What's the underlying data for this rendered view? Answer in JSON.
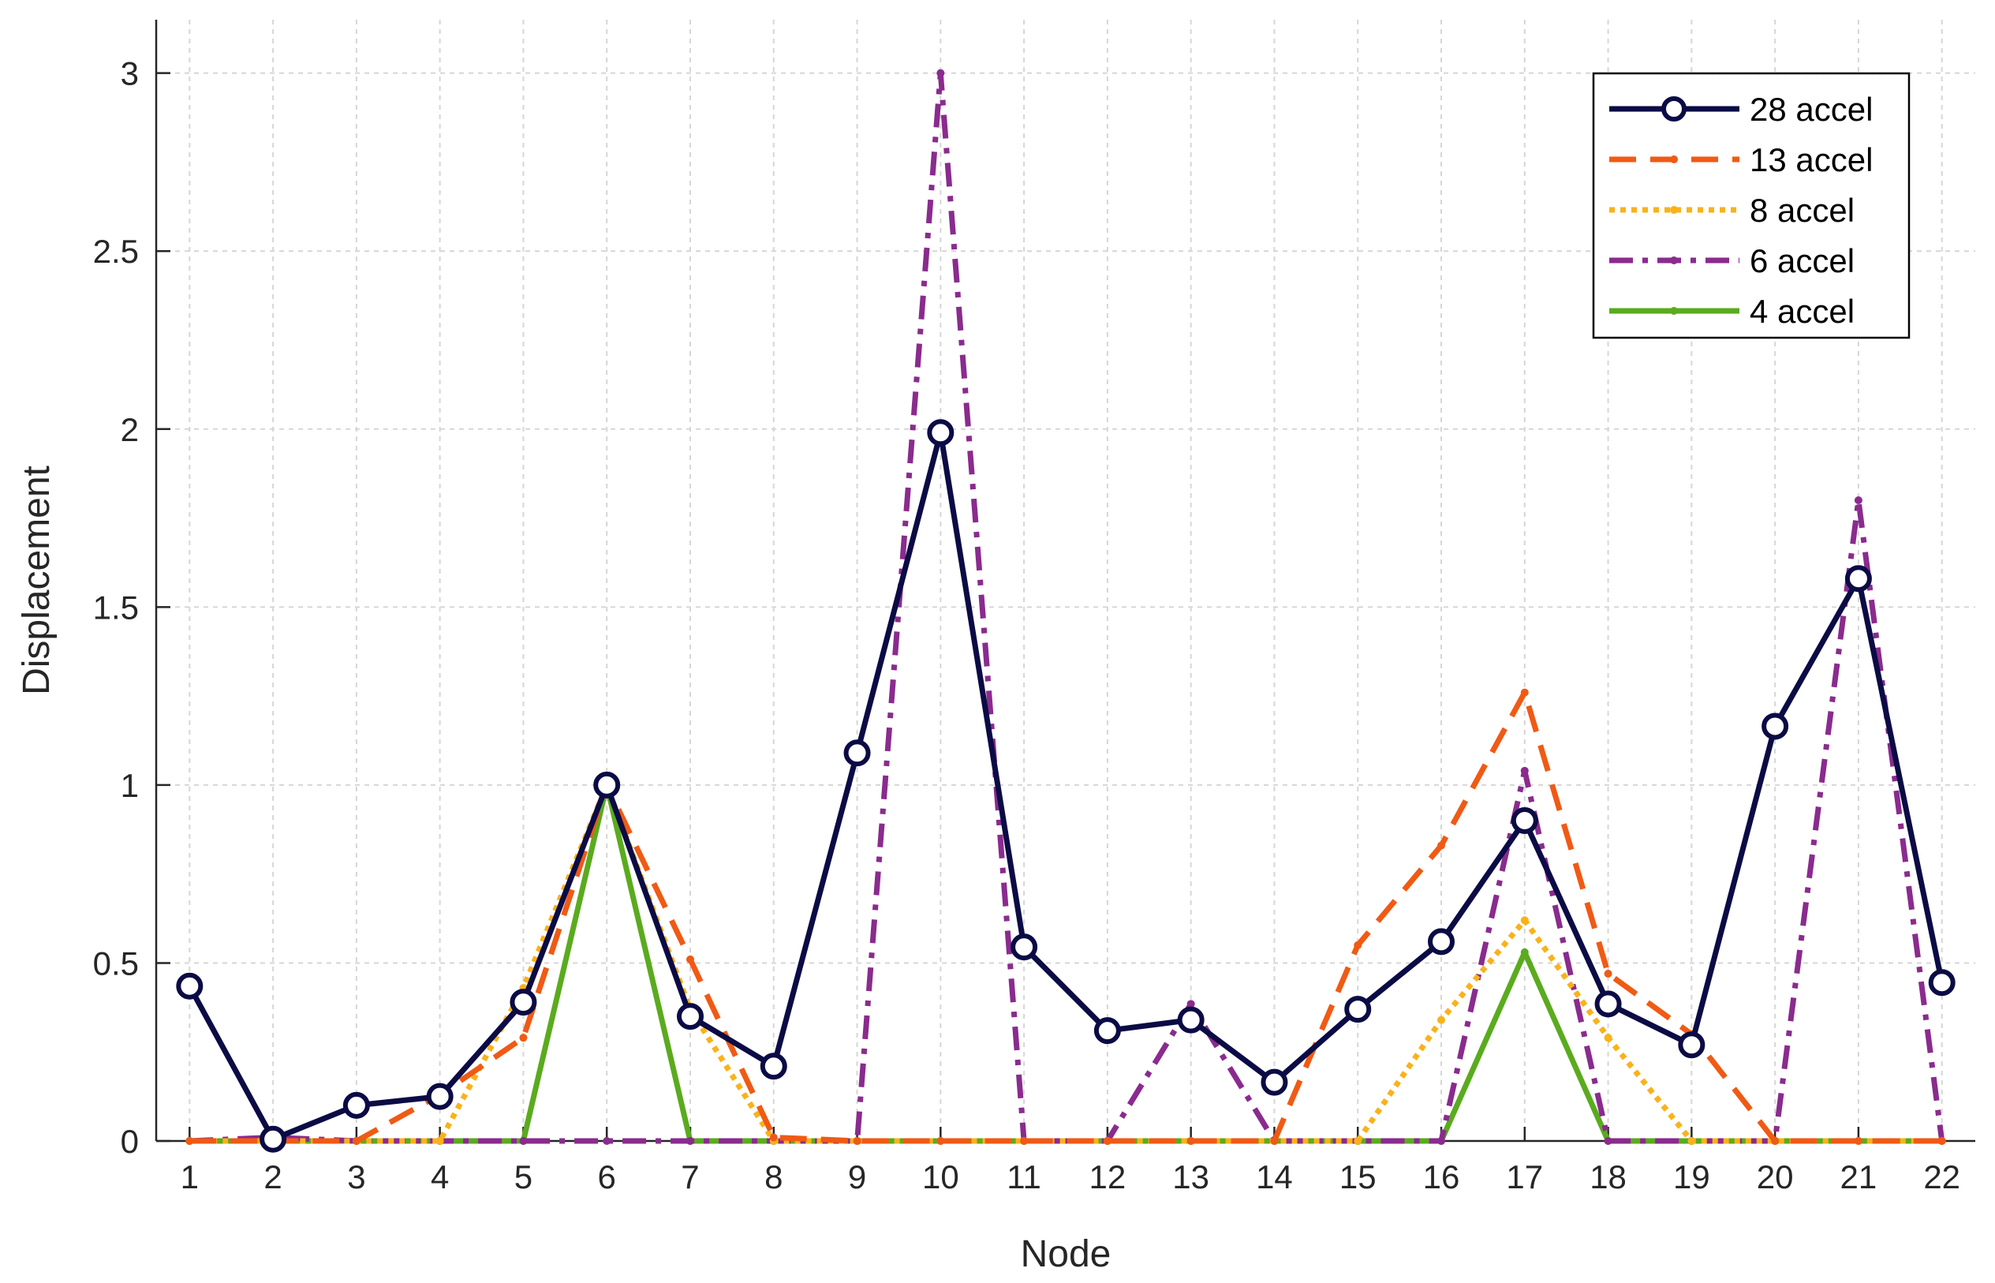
{
  "chart_data": {
    "type": "line",
    "xlabel": "Node",
    "ylabel": "Displacement",
    "x": [
      1,
      2,
      3,
      4,
      5,
      6,
      7,
      8,
      9,
      10,
      11,
      12,
      13,
      14,
      15,
      16,
      17,
      18,
      19,
      20,
      21,
      22
    ],
    "xlim": [
      0.6,
      22.4
    ],
    "ylim": [
      0,
      3.15
    ],
    "yticks": [
      0,
      0.5,
      1,
      1.5,
      2,
      2.5,
      3
    ],
    "grid": true,
    "legend_position": "top-right",
    "series": [
      {
        "name": "28 accel",
        "color": "#0b0b45",
        "style": "solid-circle",
        "values": [
          0.435,
          0.005,
          0.1,
          0.125,
          0.39,
          1.0,
          0.35,
          0.21,
          1.09,
          1.99,
          0.545,
          0.31,
          0.34,
          0.165,
          0.37,
          0.56,
          0.9,
          0.385,
          0.27,
          1.165,
          1.58,
          0.445
        ]
      },
      {
        "name": "13 accel",
        "color": "#f05a14",
        "style": "dashed",
        "values": [
          0,
          0,
          0,
          0.13,
          0.29,
          1.0,
          0.51,
          0.01,
          0,
          0,
          0,
          0,
          0,
          0,
          0.55,
          0.83,
          1.26,
          0.47,
          0.3,
          0,
          0,
          0
        ]
      },
      {
        "name": "8 accel",
        "color": "#f9b219",
        "style": "dotted",
        "values": [
          0,
          0,
          0,
          0,
          0.43,
          1.0,
          0.37,
          0,
          0,
          0,
          0,
          0,
          0,
          0,
          0,
          0.34,
          0.62,
          0.29,
          0,
          0,
          0,
          0
        ]
      },
      {
        "name": "6 accel",
        "color": "#8a2b8e",
        "style": "dashdot",
        "values": [
          0,
          0.01,
          0,
          0,
          0,
          0,
          0,
          0,
          0,
          3.0,
          0,
          0,
          0.385,
          0,
          0,
          0,
          1.04,
          0,
          0,
          0,
          1.8,
          0
        ]
      },
      {
        "name": "4 accel",
        "color": "#5aab1e",
        "style": "solid",
        "values": [
          0,
          0,
          0,
          0,
          0,
          1.0,
          0,
          0,
          0,
          0,
          0,
          0,
          0,
          0,
          0,
          0,
          0.53,
          0,
          0,
          0,
          0,
          0
        ]
      }
    ]
  }
}
